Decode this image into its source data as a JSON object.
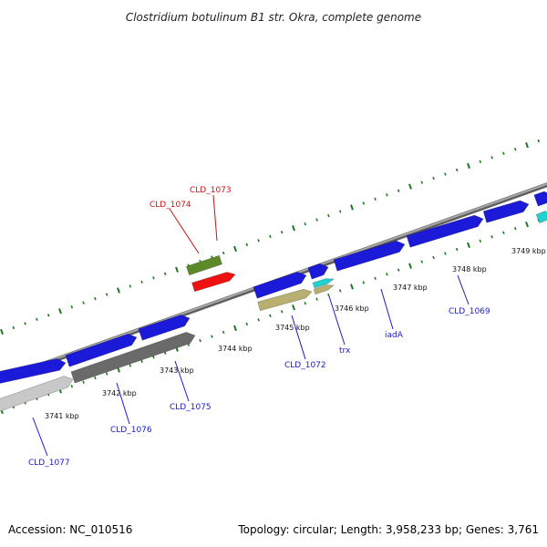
{
  "title": "Clostridium botulinum B1 str. Okra, complete genome",
  "footer": {
    "accession": "Accession: NC_010516",
    "summary": "Topology: circular; Length: 3,958,233 bp; Genes: 3,761"
  },
  "colors": {
    "backbone": "#8c8c8c",
    "forward_label": "#1a1acc",
    "reverse_label": "#cc1111",
    "tick": "#1e7a1e",
    "cds_blue": "#1a1ad8",
    "cds_cyan": "#22d0d0",
    "cds_olive": "#b8b070",
    "cds_green": "#5c8a28",
    "cds_red": "#ee1111",
    "cds_gray": "#6a6a6a",
    "cds_lightgray": "#c8c8c8"
  },
  "position_labels": [
    "3741 kbp",
    "3742 kbp",
    "3743 kbp",
    "3744 kbp",
    "3745 kbp",
    "3746 kbp",
    "3747 kbp",
    "3748 kbp",
    "3749 kbp"
  ],
  "gene_labels": [
    {
      "text": "CLD_1073",
      "strand": "reverse"
    },
    {
      "text": "CLD_1074",
      "strand": "reverse"
    },
    {
      "text": "CLD_1069",
      "strand": "forward"
    },
    {
      "text": "iadA",
      "strand": "forward"
    },
    {
      "text": "trx",
      "strand": "forward"
    },
    {
      "text": "CLD_1072",
      "strand": "forward"
    },
    {
      "text": "CLD_1075",
      "strand": "forward"
    },
    {
      "text": "CLD_1076",
      "strand": "forward"
    },
    {
      "text": "CLD_1077",
      "strand": "forward"
    }
  ]
}
